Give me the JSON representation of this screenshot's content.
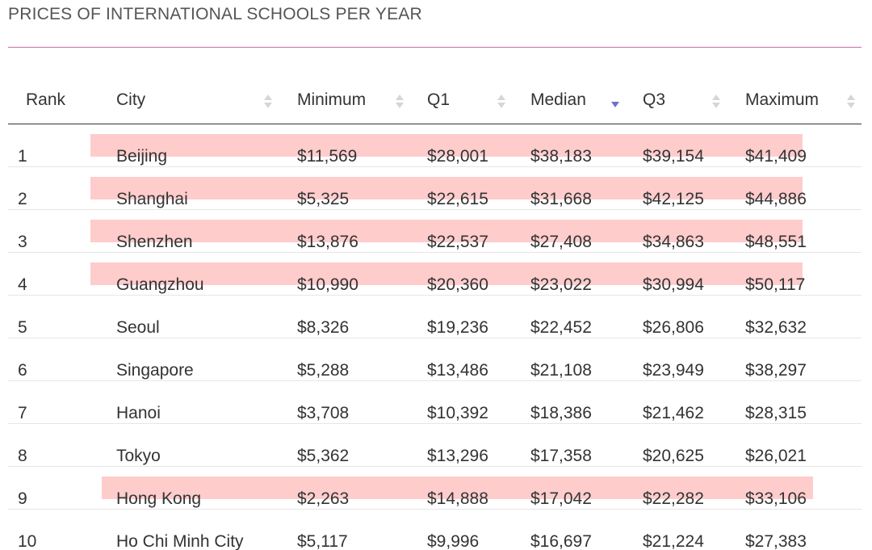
{
  "title": "PRICES OF INTERNATIONAL SCHOOLS PER YEAR",
  "accent_rule_color": "#c86aa8",
  "highlight_color": "#ffcccc",
  "sort_active_color": "#6a73c9",
  "columns": [
    {
      "label": "Rank",
      "sortable": false
    },
    {
      "label": "City",
      "sortable": true,
      "sort_icon": "sort-both-icon"
    },
    {
      "label": "Minimum",
      "sortable": true,
      "sort_icon": "sort-both-icon"
    },
    {
      "label": "Q1",
      "sortable": true,
      "sort_icon": "sort-both-icon"
    },
    {
      "label": "Median",
      "sortable": true,
      "sort_icon": "sort-descending-icon",
      "active": true
    },
    {
      "label": "Q3",
      "sortable": true,
      "sort_icon": "sort-both-icon"
    },
    {
      "label": "Maximum",
      "sortable": true,
      "sort_icon": "sort-both-icon"
    }
  ],
  "rows": [
    {
      "rank": "1",
      "city": "Beijing",
      "min": "$11,569",
      "q1": "$28,001",
      "median": "$38,183",
      "q3": "$39,154",
      "max": "$41,409",
      "highlighted": true
    },
    {
      "rank": "2",
      "city": "Shanghai",
      "min": "$5,325",
      "q1": "$22,615",
      "median": "$31,668",
      "q3": "$42,125",
      "max": "$44,886",
      "highlighted": true
    },
    {
      "rank": "3",
      "city": "Shenzhen",
      "min": "$13,876",
      "q1": "$22,537",
      "median": "$27,408",
      "q3": "$34,863",
      "max": "$48,551",
      "highlighted": true
    },
    {
      "rank": "4",
      "city": "Guangzhou",
      "min": "$10,990",
      "q1": "$20,360",
      "median": "$23,022",
      "q3": "$30,994",
      "max": "$50,117",
      "highlighted": true
    },
    {
      "rank": "5",
      "city": "Seoul",
      "min": "$8,326",
      "q1": "$19,236",
      "median": "$22,452",
      "q3": "$26,806",
      "max": "$32,632",
      "highlighted": false
    },
    {
      "rank": "6",
      "city": "Singapore",
      "min": "$5,288",
      "q1": "$13,486",
      "median": "$21,108",
      "q3": "$23,949",
      "max": "$38,297",
      "highlighted": false
    },
    {
      "rank": "7",
      "city": "Hanoi",
      "min": "$3,708",
      "q1": "$10,392",
      "median": "$18,386",
      "q3": "$21,462",
      "max": "$28,315",
      "highlighted": false
    },
    {
      "rank": "8",
      "city": "Tokyo",
      "min": "$5,362",
      "q1": "$13,296",
      "median": "$17,358",
      "q3": "$20,625",
      "max": "$26,021",
      "highlighted": false
    },
    {
      "rank": "9",
      "city": "Hong Kong",
      "min": "$2,263",
      "q1": "$14,888",
      "median": "$17,042",
      "q3": "$22,282",
      "max": "$33,106",
      "highlighted": true
    },
    {
      "rank": "10",
      "city": "Ho Chi Minh City",
      "min": "$5,117",
      "q1": "$9,996",
      "median": "$16,697",
      "q3": "$21,224",
      "max": "$27,383",
      "highlighted": false
    }
  ]
}
